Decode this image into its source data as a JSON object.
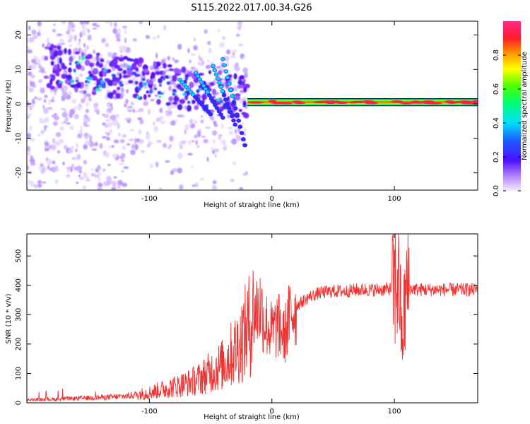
{
  "title": "S115.2022.017.00.34.G26",
  "chart_data": [
    {
      "type": "heatmap",
      "xlabel": "Height of straight line (km)",
      "ylabel": "Frequency (Hz)",
      "xlim": [
        -200,
        168
      ],
      "ylim": [
        -25,
        24
      ],
      "xticks": [
        -100,
        0,
        100
      ],
      "yticks": [
        20,
        10,
        0,
        -10,
        -20
      ],
      "colorbar": {
        "label": "Normalized spectral amplitude",
        "range": [
          0,
          1
        ],
        "ticks": [
          "0.0",
          "0.2",
          "0.4",
          "0.6",
          "0.8"
        ]
      },
      "features": {
        "carrier_line": {
          "x_start": -20,
          "x_end": 168,
          "frequency": 0.5
        },
        "scatter_region": {
          "x_start": -200,
          "x_end": -20,
          "frequency_range": [
            -25,
            24
          ]
        },
        "streaks": [
          {
            "x_start": -75,
            "x_end": -50,
            "f_start": 7,
            "f_end": -3
          },
          {
            "x_start": -62,
            "x_end": -40,
            "f_start": 9,
            "f_end": -4
          },
          {
            "x_start": -48,
            "x_end": -30,
            "f_start": 11,
            "f_end": -6
          },
          {
            "x_start": -40,
            "x_end": -22,
            "f_start": 13,
            "f_end": -12
          }
        ]
      }
    },
    {
      "type": "line",
      "xlabel": "Height of straight line (km)",
      "ylabel": "SNR (10 * v/v)",
      "xlim": [
        -200,
        168
      ],
      "ylim": [
        0,
        575
      ],
      "xticks": [
        -100,
        0,
        100
      ],
      "yticks": [
        0,
        100,
        200,
        300,
        400,
        500
      ],
      "series": [
        {
          "color": "#ee3333",
          "x": [
            -200,
            -180,
            -160,
            -140,
            -120,
            -100,
            -90,
            -80,
            -70,
            -60,
            -50,
            -40,
            -30,
            -20,
            -15,
            -10,
            -5,
            0,
            5,
            10,
            15,
            20,
            30,
            40,
            50,
            60,
            70,
            80,
            90,
            100,
            104,
            106,
            110,
            120,
            140,
            168
          ],
          "y": [
            10,
            12,
            15,
            18,
            22,
            35,
            45,
            55,
            65,
            80,
            105,
            130,
            180,
            250,
            300,
            330,
            270,
            240,
            265,
            225,
            300,
            330,
            360,
            375,
            380,
            380,
            385,
            385,
            385,
            390,
            430,
            200,
            390,
            385,
            385,
            385
          ]
        }
      ]
    }
  ]
}
